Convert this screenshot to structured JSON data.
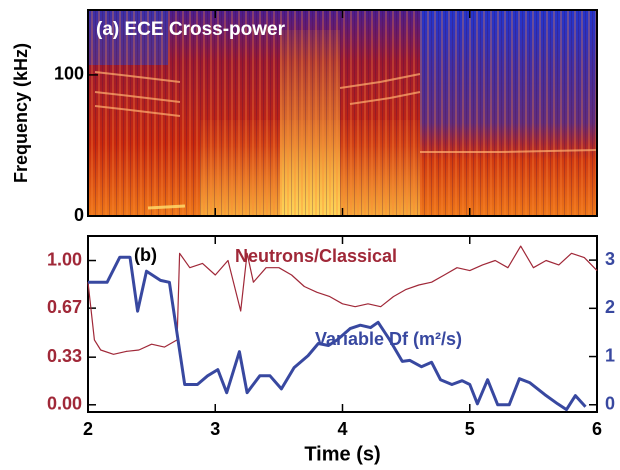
{
  "chart_data": [
    {
      "type": "spectrogram",
      "title": "(a) ECE Cross-power",
      "ylabel": "Frequency (kHz)",
      "xlim": [
        2,
        6
      ],
      "xticks": [
        2,
        3,
        4,
        5,
        6
      ],
      "ylim": [
        0,
        146
      ],
      "yticks": [
        0,
        100
      ]
    },
    {
      "type": "line",
      "title": "(b)",
      "xlabel": "Time (s)",
      "xlim": [
        2,
        6
      ],
      "xticks": [
        2,
        3,
        4,
        5,
        6
      ],
      "ylim": [
        -0.05,
        1.17
      ],
      "yticks": [
        {
          "value": 0,
          "label": "0.00"
        },
        0.33,
        0.67,
        {
          "value": 1,
          "label": "1.00"
        }
      ],
      "y2lim": [
        -0.15,
        3.5
      ],
      "y2ticks": [
        0,
        1,
        2,
        3
      ],
      "series": [
        {
          "name": "Neutrons/Classical",
          "color": "#a02838",
          "x": [
            2.0,
            2.05,
            2.1,
            2.2,
            2.3,
            2.4,
            2.5,
            2.6,
            2.7,
            2.72,
            2.8,
            2.9,
            3.0,
            3.1,
            3.2,
            3.25,
            3.3,
            3.4,
            3.5,
            3.6,
            3.7,
            3.8,
            3.9,
            4.0,
            4.1,
            4.2,
            4.3,
            4.4,
            4.5,
            4.6,
            4.7,
            4.8,
            4.9,
            5.0,
            5.1,
            5.2,
            5.3,
            5.4,
            5.5,
            5.6,
            5.7,
            5.8,
            5.9,
            6.0
          ],
          "values": [
            0.85,
            0.45,
            0.38,
            0.35,
            0.37,
            0.38,
            0.42,
            0.4,
            0.45,
            1.05,
            0.95,
            0.98,
            0.9,
            1.0,
            0.65,
            1.05,
            0.85,
            0.95,
            0.95,
            0.9,
            0.82,
            0.78,
            0.75,
            0.7,
            0.68,
            0.7,
            0.68,
            0.75,
            0.8,
            0.83,
            0.85,
            0.9,
            0.95,
            0.93,
            0.97,
            1.0,
            0.95,
            1.1,
            0.95,
            1.0,
            0.97,
            1.05,
            1.02,
            0.93
          ]
        },
        {
          "name": "Variable Df (m²/s)",
          "color": "#3848a0",
          "axis": "y2",
          "x": [
            2.0,
            2.15,
            2.25,
            2.33,
            2.39,
            2.46,
            2.57,
            2.64,
            2.76,
            2.86,
            2.94,
            3.02,
            3.09,
            3.19,
            3.25,
            3.35,
            3.43,
            3.52,
            3.62,
            3.73,
            3.81,
            3.89,
            3.96,
            4.06,
            4.14,
            4.22,
            4.28,
            4.37,
            4.47,
            4.53,
            4.62,
            4.7,
            4.77,
            4.86,
            4.94,
            5.0,
            5.06,
            5.14,
            5.22,
            5.31,
            5.39,
            5.47,
            5.59,
            5.69,
            5.76,
            5.83,
            5.91
          ],
          "values": [
            2.54,
            2.54,
            3.06,
            3.06,
            1.94,
            2.77,
            2.58,
            2.54,
            0.42,
            0.42,
            0.6,
            0.73,
            0.25,
            1.1,
            0.25,
            0.6,
            0.6,
            0.33,
            0.77,
            1.02,
            1.27,
            1.23,
            1.35,
            1.58,
            1.65,
            1.6,
            1.71,
            1.35,
            0.9,
            0.92,
            0.79,
            0.88,
            0.52,
            0.42,
            0.5,
            0.42,
            0.02,
            0.52,
            0.0,
            0.0,
            0.54,
            0.46,
            0.21,
            0.02,
            -0.1,
            0.19,
            -0.04
          ]
        }
      ]
    }
  ]
}
